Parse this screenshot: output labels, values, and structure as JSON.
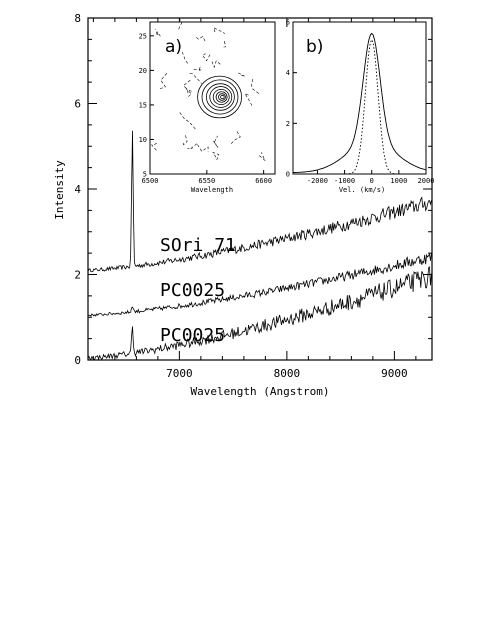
{
  "chart_data": [
    {
      "type": "line",
      "title": "",
      "xlabel": "Wavelength (Angstrom)",
      "ylabel": "Intensity",
      "xlim": [
        6150,
        9350
      ],
      "ylim": [
        0,
        8
      ],
      "xticks": [
        7000,
        8000,
        9000
      ],
      "yticks": [
        0,
        2,
        4,
        6,
        8
      ],
      "series": [
        {
          "name": "SOri 71",
          "offset": 2.1,
          "peak": 5.3,
          "amplitude": 1.0,
          "noise": 0.18
        },
        {
          "name": "PC0025",
          "offset": 1.05,
          "peak": 1.2,
          "amplitude": 0.85,
          "noise": 0.14
        },
        {
          "name": "PC0025",
          "offset": 0.05,
          "peak": 0.7,
          "amplitude": 1.2,
          "noise": 0.25
        }
      ],
      "line_feature_wavelength": 6563
    },
    {
      "type": "contour",
      "panel": "a)",
      "xlabel": "Wavelength",
      "ylabel": "",
      "xlim": [
        6500,
        6610
      ],
      "ylim": [
        5,
        27
      ],
      "xticks": [
        6500,
        6550,
        6600
      ],
      "yticks": [
        5,
        10,
        15,
        20,
        25
      ],
      "center": [
        6563,
        16
      ]
    },
    {
      "type": "line",
      "panel": "b)",
      "xlabel": "Vel. (km/s)",
      "ylabel": "",
      "xlim": [
        -2900,
        2000
      ],
      "ylim": [
        0,
        6
      ],
      "xticks": [
        -2000,
        -1000,
        0,
        1000,
        2000
      ],
      "yticks": [
        0,
        2,
        4,
        6
      ],
      "peak": 5.5
    }
  ]
}
